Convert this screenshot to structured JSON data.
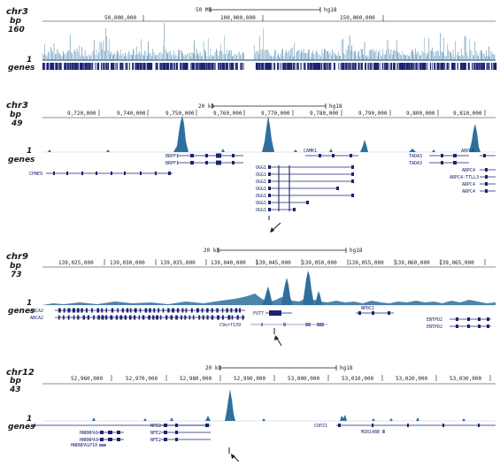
{
  "colors": {
    "signal": "#2e6f9e",
    "signal_dark": "#1f5a86",
    "gene": "#1c2370",
    "axis": "#1a1a1a"
  },
  "panels": [
    {
      "chrom": "chr3",
      "bp_label": "bp",
      "max_label": "160",
      "one_label": "1",
      "genes_label": "genes",
      "scalebar": "50 Mb",
      "assembly": "hg18",
      "ticks": [
        "50,000,000",
        "100,000,000",
        "150,000,000"
      ],
      "genes": []
    },
    {
      "chrom": "chr3",
      "bp_label": "bp",
      "max_label": "49",
      "one_label": "1",
      "genes_label": "genes",
      "scalebar": "20 kb",
      "assembly": "hg18",
      "ticks": [
        "9,720,000",
        "9,740,000",
        "9,750,000",
        "9,760,000",
        "9,770,000",
        "9,780,000",
        "9,790,000",
        "9,800,000",
        "9,810,000"
      ],
      "genes": [
        "BRPF1",
        "BRPF1",
        "OGG1",
        "OGG1",
        "OGG1",
        "OGG1",
        "OGG1",
        "OGG1",
        "OGG1",
        "CAMK1",
        "TADA3",
        "TADA3",
        "ARPC4",
        "ARPC4",
        "ARPC4-TTLL3",
        "ARPC4",
        "ARPC4",
        "CPNE9"
      ]
    },
    {
      "chrom": "chr9",
      "bp_label": "bp",
      "max_label": "73",
      "one_label": "1",
      "genes_label": "genes",
      "scalebar": "20 kb",
      "assembly": "hg18",
      "ticks": [
        "139,025,000",
        "139,030,000",
        "139,035,000",
        "139,040,000",
        "139,045,000",
        "139,050,000",
        "139,055,000",
        "139,060,000",
        "139,065,000"
      ],
      "genes": [
        "ABCA2",
        "ABCA2",
        "FUT7",
        "C9orf139",
        "NPDC1",
        "ENTPD2",
        "ENTPD2"
      ]
    },
    {
      "chrom": "chr12",
      "bp_label": "bp",
      "max_label": "43",
      "one_label": "1",
      "genes_label": "genes",
      "scalebar": "20 kb",
      "assembly": "hg18",
      "ticks": [
        "52,960,000",
        "52,970,000",
        "52,980,000",
        "52,990,000",
        "53,000,000",
        "53,010,000",
        "53,020,000",
        "53,030,000"
      ],
      "genes": [
        "HNRNPA1",
        "HNRNPA1",
        "HNRNPA1P10",
        "NFE2",
        "NFE2",
        "NFE2",
        "COPZ1",
        "MIR148B"
      ]
    }
  ]
}
